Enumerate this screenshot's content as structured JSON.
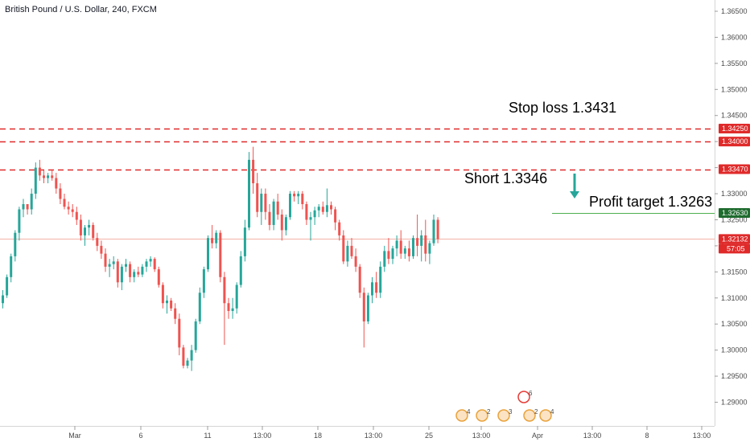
{
  "title": "British Pound / U.S. Dollar, 240, FXCM",
  "annotations": {
    "stop_loss": "Stop loss 1.3431",
    "short": "Short 1.3346",
    "profit_target": "Profit target 1.3263"
  },
  "colors": {
    "up": "#26a69a",
    "down": "#ef5350",
    "level": "#e02a2a",
    "current": "#f4b2a8",
    "target": "#4caf50",
    "arrow": "#26a69a",
    "tag_green": "#1e6b2e"
  },
  "y_axis_labels": [
    "1.36500",
    "1.36000",
    "1.35500",
    "1.35000",
    "1.34500",
    "1.34000",
    "1.33500",
    "1.33000",
    "1.32500",
    "1.32000",
    "1.31500",
    "1.31000",
    "1.30500",
    "1.30000",
    "1.29500",
    "1.29000"
  ],
  "x_axis_labels": [
    "Mar",
    "6",
    "11",
    "13:00",
    "18",
    "13:00",
    "25",
    "13:00",
    "Apr",
    "13:00",
    "8",
    "13:00"
  ],
  "price_tags": [
    {
      "label": "1.34250",
      "price": 1.3425,
      "style": "level"
    },
    {
      "label": "1.34000",
      "price": 1.34,
      "style": "level"
    },
    {
      "label": "1.33470",
      "price": 1.3347,
      "style": "level"
    },
    {
      "label": "1.32630",
      "price": 1.3263,
      "style": "target"
    },
    {
      "label": "1.32132",
      "price": 1.32132,
      "style": "current"
    }
  ],
  "countdown": "57:05",
  "event_badges": [
    "4",
    "2",
    "3",
    "2",
    "4",
    "6"
  ],
  "chart_data": {
    "type": "candlestick",
    "title": "British Pound / U.S. Dollar, 240, FXCM",
    "ylim": [
      1.2845,
      1.367
    ],
    "grid": false,
    "levels": [
      {
        "price": 1.3425,
        "style": "dashed"
      },
      {
        "price": 1.34,
        "style": "dashed"
      },
      {
        "price": 1.3347,
        "style": "dashed"
      },
      {
        "price": 1.3263,
        "style": "solid"
      },
      {
        "price": 1.32132,
        "style": "current"
      }
    ],
    "ohlc": [
      [
        1.309,
        1.3115,
        1.308,
        1.3105
      ],
      [
        1.3105,
        1.3145,
        1.31,
        1.314
      ],
      [
        1.314,
        1.3185,
        1.313,
        1.318
      ],
      [
        1.318,
        1.323,
        1.317,
        1.3225
      ],
      [
        1.3225,
        1.3275,
        1.321,
        1.327
      ],
      [
        1.327,
        1.329,
        1.3255,
        1.328
      ],
      [
        1.328,
        1.3275,
        1.326,
        1.327
      ],
      [
        1.327,
        1.331,
        1.326,
        1.33
      ],
      [
        1.33,
        1.336,
        1.329,
        1.335
      ],
      [
        1.335,
        1.3365,
        1.3325,
        1.3335
      ],
      [
        1.3335,
        1.3345,
        1.332,
        1.333
      ],
      [
        1.333,
        1.334,
        1.332,
        1.3335
      ],
      [
        1.3335,
        1.3345,
        1.3325,
        1.333
      ],
      [
        1.333,
        1.334,
        1.33,
        1.331
      ],
      [
        1.331,
        1.332,
        1.328,
        1.329
      ],
      [
        1.329,
        1.33,
        1.327,
        1.3275
      ],
      [
        1.3275,
        1.3285,
        1.326,
        1.327
      ],
      [
        1.327,
        1.328,
        1.3255,
        1.3265
      ],
      [
        1.3265,
        1.3275,
        1.324,
        1.325
      ],
      [
        1.325,
        1.326,
        1.321,
        1.322
      ],
      [
        1.322,
        1.324,
        1.32,
        1.3235
      ],
      [
        1.3235,
        1.325,
        1.322,
        1.324
      ],
      [
        1.324,
        1.3245,
        1.321,
        1.3215
      ],
      [
        1.3215,
        1.3225,
        1.319,
        1.32
      ],
      [
        1.32,
        1.321,
        1.3175,
        1.3185
      ],
      [
        1.3185,
        1.3195,
        1.315,
        1.316
      ],
      [
        1.316,
        1.3175,
        1.314,
        1.3165
      ],
      [
        1.3165,
        1.318,
        1.3155,
        1.317
      ],
      [
        1.317,
        1.3175,
        1.312,
        1.313
      ],
      [
        1.313,
        1.3165,
        1.3115,
        1.316
      ],
      [
        1.316,
        1.3175,
        1.315,
        1.3165
      ],
      [
        1.3165,
        1.317,
        1.313,
        1.314
      ],
      [
        1.314,
        1.3155,
        1.313,
        1.315
      ],
      [
        1.315,
        1.316,
        1.314,
        1.3145
      ],
      [
        1.3145,
        1.3165,
        1.314,
        1.316
      ],
      [
        1.316,
        1.3175,
        1.315,
        1.317
      ],
      [
        1.317,
        1.318,
        1.316,
        1.3175
      ],
      [
        1.3175,
        1.3178,
        1.315,
        1.3155
      ],
      [
        1.3155,
        1.316,
        1.312,
        1.3125
      ],
      [
        1.3125,
        1.313,
        1.308,
        1.309
      ],
      [
        1.309,
        1.3105,
        1.307,
        1.3095
      ],
      [
        1.3095,
        1.31,
        1.3075,
        1.308
      ],
      [
        1.308,
        1.309,
        1.305,
        1.306
      ],
      [
        1.306,
        1.307,
        1.299,
        1.3005
      ],
      [
        1.3005,
        1.301,
        1.2965,
        1.297
      ],
      [
        1.297,
        1.2985,
        1.2965,
        1.298
      ],
      [
        1.298,
        1.301,
        1.296,
        1.3
      ],
      [
        1.3,
        1.306,
        1.2995,
        1.3055
      ],
      [
        1.3055,
        1.312,
        1.305,
        1.311
      ],
      [
        1.311,
        1.316,
        1.31,
        1.3155
      ],
      [
        1.3155,
        1.322,
        1.315,
        1.3215
      ],
      [
        1.3215,
        1.324,
        1.3195,
        1.3205
      ],
      [
        1.3205,
        1.323,
        1.3195,
        1.3225
      ],
      [
        1.3225,
        1.323,
        1.313,
        1.314
      ],
      [
        1.314,
        1.315,
        1.301,
        1.309
      ],
      [
        1.309,
        1.31,
        1.306,
        1.3075
      ],
      [
        1.3075,
        1.31,
        1.306,
        1.308
      ],
      [
        1.308,
        1.313,
        1.307,
        1.3125
      ],
      [
        1.3125,
        1.319,
        1.312,
        1.318
      ],
      [
        1.318,
        1.325,
        1.317,
        1.3235
      ],
      [
        1.3235,
        1.338,
        1.323,
        1.3365
      ],
      [
        1.3365,
        1.339,
        1.33,
        1.332
      ],
      [
        1.332,
        1.334,
        1.3255,
        1.3265
      ],
      [
        1.3265,
        1.331,
        1.324,
        1.33
      ],
      [
        1.33,
        1.331,
        1.325,
        1.3265
      ],
      [
        1.3265,
        1.328,
        1.323,
        1.324
      ],
      [
        1.324,
        1.329,
        1.323,
        1.3285
      ],
      [
        1.3285,
        1.33,
        1.325,
        1.326
      ],
      [
        1.326,
        1.327,
        1.321,
        1.323
      ],
      [
        1.323,
        1.326,
        1.322,
        1.3255
      ],
      [
        1.3255,
        1.3305,
        1.325,
        1.33
      ],
      [
        1.33,
        1.3305,
        1.3285,
        1.3295
      ],
      [
        1.3295,
        1.3305,
        1.328,
        1.33
      ],
      [
        1.33,
        1.3305,
        1.327,
        1.328
      ],
      [
        1.328,
        1.3285,
        1.324,
        1.325
      ],
      [
        1.325,
        1.3265,
        1.321,
        1.3255
      ],
      [
        1.3255,
        1.3275,
        1.324,
        1.3268
      ],
      [
        1.3268,
        1.328,
        1.3255,
        1.3275
      ],
      [
        1.3275,
        1.3285,
        1.326,
        1.3265
      ],
      [
        1.3265,
        1.331,
        1.3255,
        1.3278
      ],
      [
        1.3278,
        1.3285,
        1.326,
        1.327
      ],
      [
        1.327,
        1.3275,
        1.323,
        1.3245
      ],
      [
        1.3245,
        1.325,
        1.321,
        1.322
      ],
      [
        1.322,
        1.323,
        1.3165,
        1.317
      ],
      [
        1.317,
        1.321,
        1.316,
        1.32
      ],
      [
        1.32,
        1.3215,
        1.3175,
        1.318
      ],
      [
        1.318,
        1.3195,
        1.315,
        1.316
      ],
      [
        1.316,
        1.3165,
        1.31,
        1.311
      ],
      [
        1.311,
        1.312,
        1.3005,
        1.3055
      ],
      [
        1.3055,
        1.311,
        1.305,
        1.3105
      ],
      [
        1.3105,
        1.314,
        1.309,
        1.313
      ],
      [
        1.313,
        1.315,
        1.31,
        1.311
      ],
      [
        1.311,
        1.317,
        1.31,
        1.316
      ],
      [
        1.316,
        1.32,
        1.315,
        1.319
      ],
      [
        1.319,
        1.3215,
        1.3165,
        1.3175
      ],
      [
        1.3175,
        1.32,
        1.3165,
        1.3195
      ],
      [
        1.3195,
        1.322,
        1.318,
        1.321
      ],
      [
        1.321,
        1.323,
        1.3175,
        1.3185
      ],
      [
        1.3185,
        1.32,
        1.3175,
        1.3195
      ],
      [
        1.3195,
        1.321,
        1.317,
        1.318
      ],
      [
        1.318,
        1.322,
        1.3175,
        1.3215
      ],
      [
        1.3215,
        1.326,
        1.318,
        1.32
      ],
      [
        1.32,
        1.323,
        1.317,
        1.322
      ],
      [
        1.322,
        1.325,
        1.317,
        1.3185
      ],
      [
        1.3185,
        1.321,
        1.3165,
        1.3205
      ],
      [
        1.3205,
        1.326,
        1.32,
        1.325
      ],
      [
        1.325,
        1.3255,
        1.3205,
        1.3213
      ]
    ]
  }
}
